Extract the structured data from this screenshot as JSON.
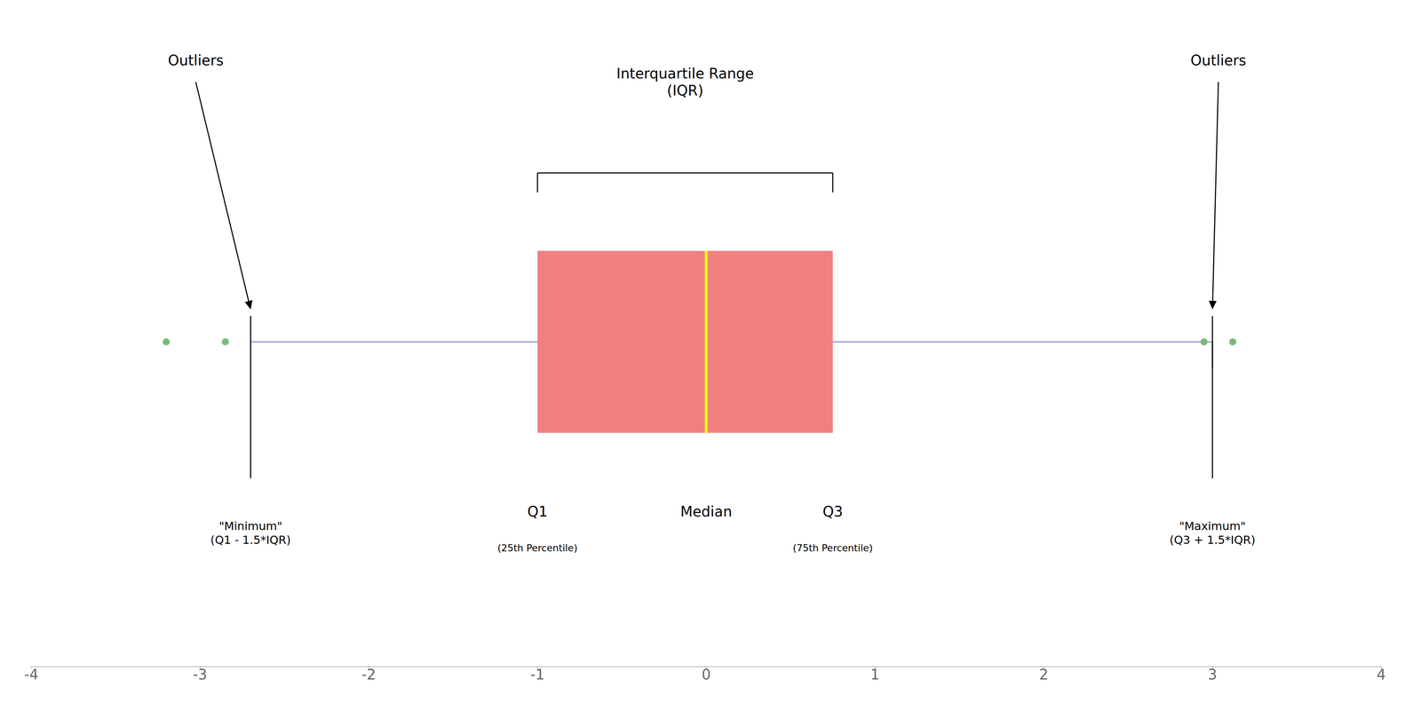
{
  "chart_data": {
    "type": "box",
    "orientation": "horizontal",
    "q1": -1.0,
    "median": 0.0,
    "q3": 0.75,
    "whisker_low": -2.7,
    "whisker_high": 3.0,
    "outliers_left": [
      -3.2,
      -2.85
    ],
    "outliers_right": [
      2.95,
      3.12
    ],
    "xlim": [
      -4,
      4
    ],
    "xticks": [
      -4,
      -3,
      -2,
      -1,
      0,
      1,
      2,
      3,
      4
    ],
    "ylim": [
      -1.0,
      1.0
    ],
    "tick_labels": "x",
    "grid": false,
    "colors": [
      "#F08080",
      "yellow",
      "#8888cc",
      "#77bb77"
    ],
    "labels": {
      "iqr": "Interquartile Range\n(IQR)",
      "minimum": "\"Minimum\"\n(Q1 - 1.5*IQR)",
      "maximum": "\"Maximum\"\n(Q3 + 1.5*IQR)",
      "outliers_left": "Outliers",
      "outliers_right": "Outliers",
      "q1": "Q1",
      "q1_sub": "(25th Percentile)",
      "median": "Median",
      "q3": "Q3",
      "q3_sub": "(75th Percentile)"
    }
  }
}
